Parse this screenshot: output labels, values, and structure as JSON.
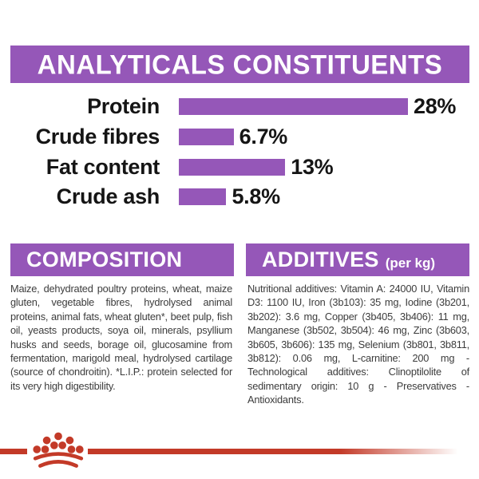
{
  "colors": {
    "purple": "#9557b8",
    "red": "#c33a28",
    "chart_text": "#151515",
    "body_text": "#3c3c3c"
  },
  "header": {
    "title": "ANALYTICALS CONSTITUENTS"
  },
  "chart_data": {
    "type": "bar",
    "orientation": "horizontal",
    "title": "ANALYTICALS CONSTITUENTS",
    "categories": [
      "Protein",
      "Crude fibres",
      "Fat content",
      "Crude ash"
    ],
    "values": [
      28,
      6.7,
      13,
      5.8
    ],
    "value_labels": [
      "28%",
      "6.7%",
      "13%",
      "5.8%"
    ],
    "unit": "%",
    "xlim": [
      0,
      30
    ],
    "grid": false,
    "legend": false,
    "bar_color": "#9557b8"
  },
  "composition": {
    "title": "COMPOSITION",
    "text": "Maize, dehydrated poultry proteins, wheat, maize gluten, vegetable fibres, hydrolysed animal proteins, animal fats, wheat gluten*, beet pulp, fish oil, yeasts products, soya oil, minerals, psyllium husks and seeds, borage oil, glucosamine from fermentation, marigold meal, hydrolysed cartilage (source of chondroitin). *L.I.P.: protein selected for its very high digestibility."
  },
  "additives": {
    "title": "ADDITIVES",
    "title_suffix": "(per kg)",
    "text": "Nutritional additives: Vitamin A: 24000 IU, Vitamin D3: 1100 IU, Iron (3b103): 35 mg, Iodine (3b201, 3b202): 3.6 mg, Copper (3b405, 3b406): 11 mg, Manganese (3b502, 3b504): 46 mg, Zinc (3b603, 3b605, 3b606): 135 mg, Selenium (3b801, 3b811, 3b812): 0.06 mg, L-carnitine: 200 mg - Technological additives: Clinoptilolite of sedimentary origin: 10 g - Preservatives - Antioxidants."
  },
  "footer": {
    "logo": "royal-canin-crown-icon"
  }
}
